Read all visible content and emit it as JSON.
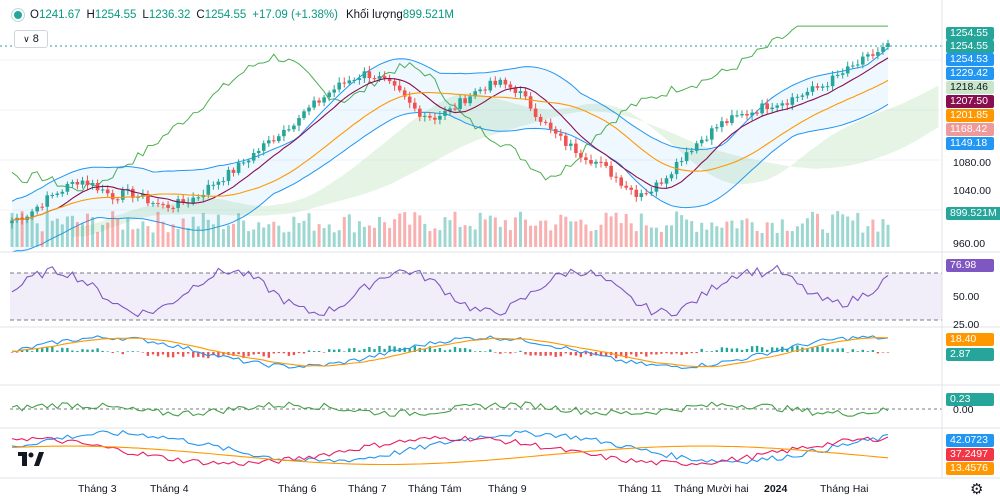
{
  "header": {
    "o_label": "O",
    "o": "1241.67",
    "h_label": "H",
    "h": "1254.55",
    "l_label": "L",
    "l": "1236.32",
    "c_label": "C",
    "c": "1254.55",
    "change": "+17.09 (+1.38%)",
    "volume_label": "Khối lượng",
    "volume": "899.521M"
  },
  "collapse": {
    "count": "8",
    "icon": "chevron-down-icon"
  },
  "price_axis": {
    "ticks": [
      "1080.00",
      "1040.00",
      "960.00"
    ],
    "tags": [
      {
        "name": "price-close",
        "text": "1254.55",
        "color": "#26a69a"
      },
      {
        "name": "price-high",
        "text": "1254.55",
        "color": "#26a69a"
      },
      {
        "name": "bb-upper",
        "text": "1254.53",
        "color": "#2196f3"
      },
      {
        "name": "cloud-a",
        "text": "1229.42",
        "color": "#2196f3"
      },
      {
        "name": "lead-b",
        "text": "1218.46",
        "color": "#c8e6c9"
      },
      {
        "name": "ma-red",
        "text": "1207.50",
        "color": "#880e4f"
      },
      {
        "name": "ma-orange",
        "text": "1201.85",
        "color": "#ff9800"
      },
      {
        "name": "span-b",
        "text": "1168.42",
        "color": "#ef9a9a"
      },
      {
        "name": "bb-lower",
        "text": "1149.18",
        "color": "#2196f3"
      },
      {
        "name": "volume",
        "text": "899.521M",
        "color": "#26a69a"
      }
    ]
  },
  "rsi": {
    "value": "76.98",
    "color": "#7e57c2",
    "ticks": [
      "50.00",
      "25.00"
    ]
  },
  "macd": {
    "macd_value": "18.40",
    "signal_value": "2.87",
    "macd_color": "#ff9800",
    "hist_color": "#26a69a"
  },
  "momentum": {
    "value": "0.23",
    "zero": "0.00",
    "color": "#26a69a"
  },
  "dmi": {
    "plus": "42.0723",
    "minus": "37.2497",
    "adx": "13.4576",
    "plus_color": "#2196f3",
    "minus_color": "#f23645",
    "adx_color": "#ff9800"
  },
  "time_axis": [
    "Tháng 3",
    "Tháng 4",
    "Tháng 6",
    "Tháng 7",
    "Tháng Tám",
    "Tháng 9",
    "Tháng 11",
    "Tháng Mười hai",
    "2024",
    "Tháng Hai"
  ],
  "chart_data": {
    "type": "candlestick",
    "series_close": [
      1000,
      1010,
      1030,
      1045,
      1060,
      1050,
      1035,
      1040,
      1030,
      1020,
      1025,
      1035,
      1055,
      1070,
      1090,
      1110,
      1130,
      1150,
      1170,
      1190,
      1205,
      1215,
      1205,
      1185,
      1160,
      1150,
      1160,
      1180,
      1195,
      1200,
      1190,
      1160,
      1130,
      1110,
      1095,
      1080,
      1060,
      1040,
      1045,
      1070,
      1100,
      1120,
      1140,
      1150,
      1160,
      1170,
      1175,
      1185,
      1195,
      1210,
      1225,
      1240,
      1254.55
    ]
  }
}
